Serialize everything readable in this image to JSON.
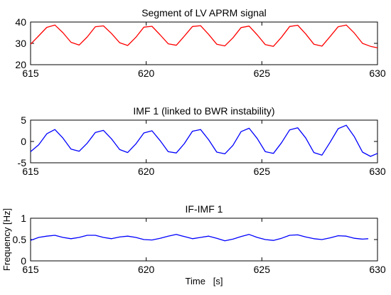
{
  "chart_data": [
    {
      "type": "line",
      "title": "Segment of LV APRM signal",
      "xlabel": "",
      "ylabel": "",
      "xlim": [
        615,
        630
      ],
      "ylim": [
        20,
        40
      ],
      "xticks": [
        615,
        620,
        625,
        630
      ],
      "yticks": [
        20,
        30,
        40
      ],
      "series": [
        {
          "color": "#ff0000",
          "x": [
            615.0,
            615.35,
            615.7,
            616.05,
            616.4,
            616.75,
            617.1,
            617.45,
            617.8,
            618.15,
            618.5,
            618.85,
            619.2,
            619.55,
            619.9,
            620.25,
            620.6,
            620.95,
            621.3,
            621.65,
            622.0,
            622.35,
            622.7,
            623.05,
            623.4,
            623.75,
            624.1,
            624.45,
            624.8,
            625.15,
            625.5,
            625.85,
            626.2,
            626.55,
            626.9,
            627.25,
            627.6,
            627.95,
            628.3,
            628.65,
            629.0,
            629.35,
            629.7,
            630.0
          ],
          "y": [
            29.6,
            33.5,
            37.5,
            38.6,
            35.0,
            30.5,
            29.2,
            33.0,
            37.8,
            38.2,
            34.6,
            30.3,
            29.0,
            32.8,
            37.6,
            38.0,
            34.0,
            29.8,
            29.1,
            33.4,
            37.9,
            38.3,
            34.2,
            29.6,
            28.8,
            32.6,
            37.4,
            38.1,
            34.0,
            29.4,
            28.6,
            32.9,
            37.9,
            38.5,
            34.4,
            29.6,
            28.7,
            33.2,
            37.8,
            38.6,
            34.8,
            30.0,
            28.6,
            27.9
          ]
        }
      ]
    },
    {
      "type": "line",
      "title": "IMF 1 (linked to BWR instability)",
      "xlabel": "",
      "ylabel": "",
      "xlim": [
        615,
        630
      ],
      "ylim": [
        -5,
        5
      ],
      "xticks": [
        615,
        620,
        625,
        630
      ],
      "yticks": [
        -5,
        0,
        5
      ],
      "series": [
        {
          "color": "#0000ff",
          "x": [
            615.0,
            615.35,
            615.7,
            616.05,
            616.4,
            616.75,
            617.1,
            617.45,
            617.8,
            618.15,
            618.5,
            618.85,
            619.2,
            619.55,
            619.9,
            620.25,
            620.6,
            620.95,
            621.3,
            621.65,
            622.0,
            622.35,
            622.7,
            623.05,
            623.4,
            623.75,
            624.1,
            624.45,
            624.8,
            625.15,
            625.5,
            625.85,
            626.2,
            626.55,
            626.9,
            627.25,
            627.6,
            627.95,
            628.3,
            628.65,
            629.0,
            629.35,
            629.7,
            630.0
          ],
          "y": [
            -2.4,
            -0.8,
            1.8,
            2.8,
            0.8,
            -1.8,
            -2.3,
            -0.4,
            2.1,
            2.6,
            0.6,
            -1.9,
            -2.6,
            -0.6,
            2.0,
            2.5,
            0.2,
            -2.4,
            -2.7,
            -0.5,
            2.4,
            2.8,
            0.4,
            -2.5,
            -2.9,
            -0.9,
            2.3,
            3.1,
            0.7,
            -2.4,
            -2.8,
            -0.3,
            2.7,
            3.2,
            0.8,
            -2.6,
            -3.2,
            -0.2,
            3.0,
            3.8,
            1.1,
            -2.5,
            -3.5,
            -2.8
          ]
        }
      ]
    },
    {
      "type": "line",
      "title": "IF-IMF 1",
      "xlabel": "Time   [s]",
      "ylabel": "Frequency [Hz]",
      "xlim": [
        615,
        630
      ],
      "ylim": [
        0,
        1
      ],
      "xticks": [
        615,
        620,
        625,
        630
      ],
      "yticks": [
        0,
        0.5,
        1
      ],
      "series": [
        {
          "color": "#0000ff",
          "x": [
            615.0,
            615.35,
            615.7,
            616.05,
            616.4,
            616.75,
            617.1,
            617.45,
            617.8,
            618.15,
            618.5,
            618.85,
            619.2,
            619.55,
            619.9,
            620.25,
            620.6,
            620.95,
            621.3,
            621.65,
            622.0,
            622.35,
            622.7,
            623.05,
            623.4,
            623.75,
            624.1,
            624.45,
            624.8,
            625.15,
            625.5,
            625.85,
            626.2,
            626.55,
            626.9,
            627.25,
            627.6,
            627.95,
            628.3,
            628.65,
            629.0,
            629.35,
            629.6
          ],
          "y": [
            0.48,
            0.55,
            0.58,
            0.6,
            0.55,
            0.52,
            0.55,
            0.6,
            0.6,
            0.55,
            0.52,
            0.56,
            0.58,
            0.55,
            0.5,
            0.49,
            0.53,
            0.58,
            0.62,
            0.57,
            0.52,
            0.55,
            0.58,
            0.53,
            0.47,
            0.51,
            0.57,
            0.62,
            0.55,
            0.5,
            0.48,
            0.53,
            0.6,
            0.61,
            0.56,
            0.52,
            0.5,
            0.54,
            0.59,
            0.58,
            0.53,
            0.51,
            0.52
          ]
        }
      ]
    }
  ]
}
